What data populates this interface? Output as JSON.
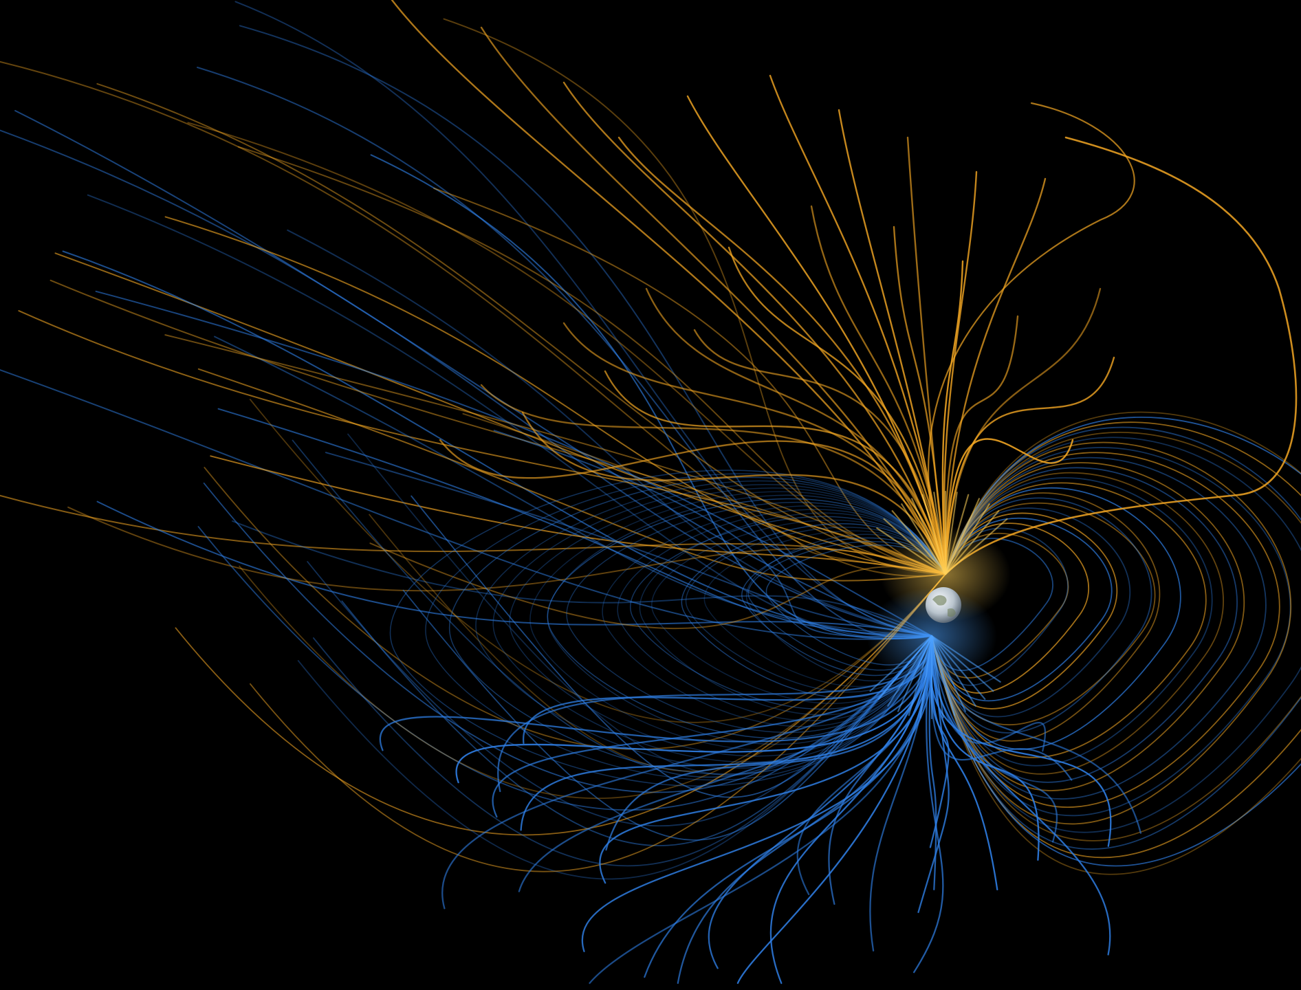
{
  "colors": {
    "background": "#000000",
    "north_lines": "#F2A623",
    "north_glow": "#FFD15A",
    "south_lines": "#2F7FE6",
    "south_glow": "#4FA3FF",
    "planet_light": "#E8EEF2",
    "planet_dark": "#8A98A6"
  },
  "icons": {
    "planet": "earth-globe-icon"
  }
}
